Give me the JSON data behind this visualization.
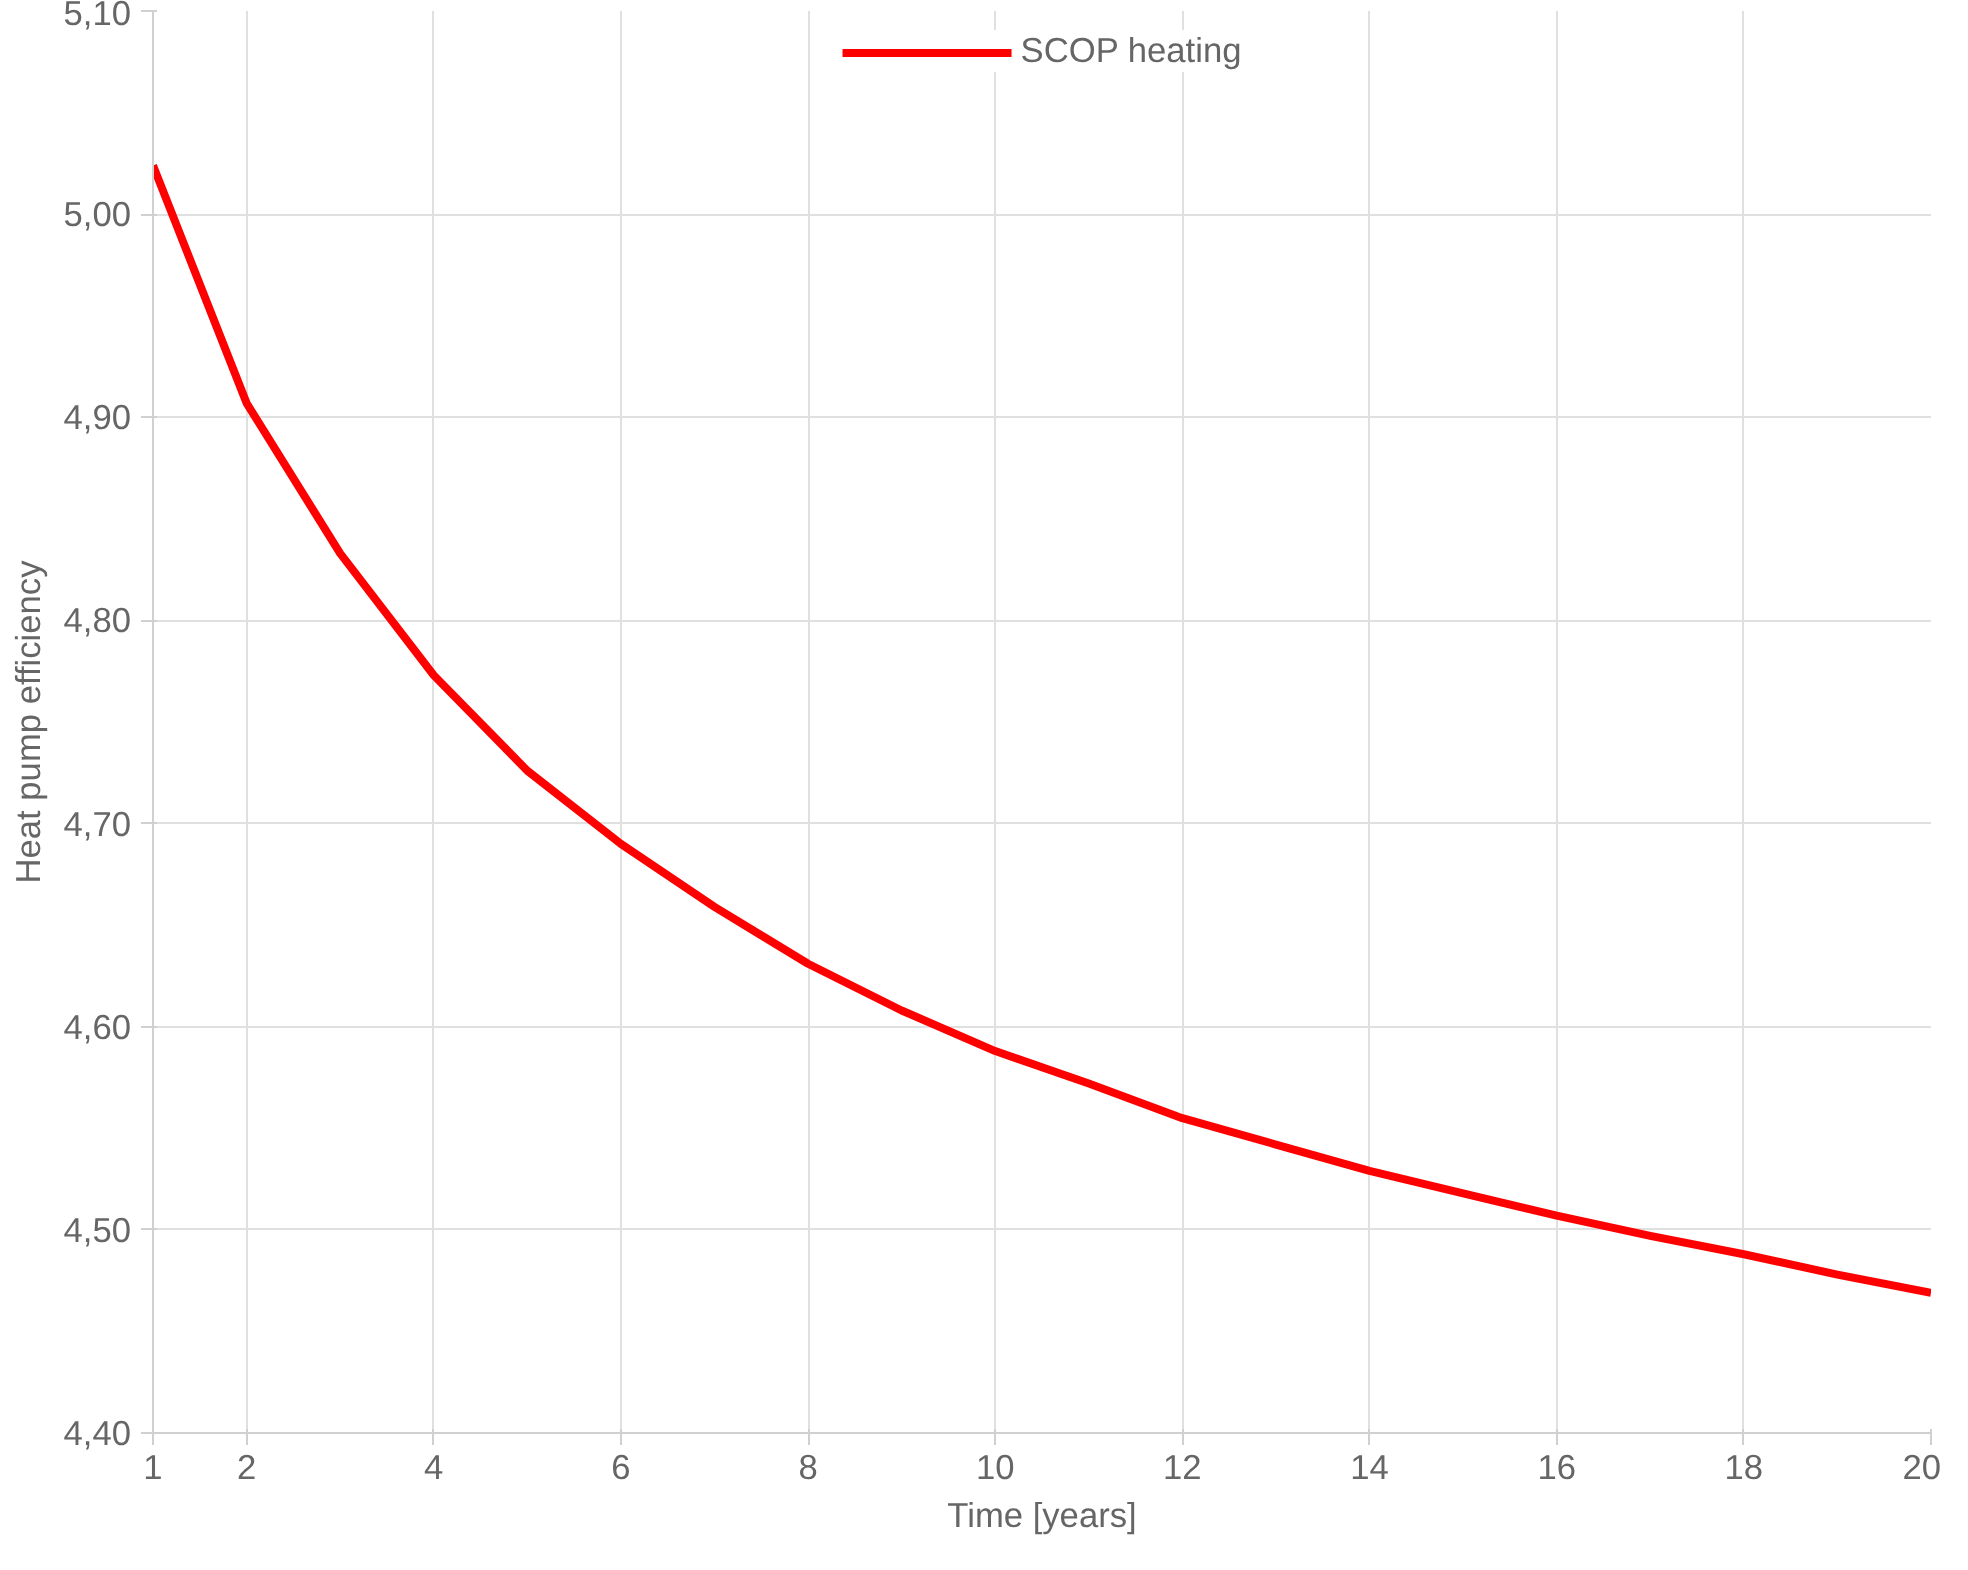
{
  "chart_data": {
    "type": "line",
    "xlabel": "Time [years]",
    "ylabel": "Heat pump efficiency",
    "x": [
      1,
      2,
      3,
      4,
      5,
      6,
      7,
      8,
      9,
      10,
      11,
      12,
      13,
      14,
      15,
      16,
      17,
      18,
      19,
      20
    ],
    "series": [
      {
        "name": "SCOP heating",
        "color": "#ff0000",
        "values": [
          5.024,
          4.907,
          4.833,
          4.773,
          4.726,
          4.69,
          4.659,
          4.631,
          4.608,
          4.588,
          4.572,
          4.555,
          4.542,
          4.529,
          4.518,
          4.507,
          4.497,
          4.488,
          4.478,
          4.469
        ]
      }
    ],
    "xlim": [
      1,
      20
    ],
    "xticks": [
      1,
      2,
      4,
      6,
      8,
      10,
      12,
      14,
      16,
      18,
      20
    ],
    "ylim": [
      4.4,
      5.1
    ],
    "yticks": [
      {
        "value": 4.4,
        "label": "4,40"
      },
      {
        "value": 4.5,
        "label": "4,50"
      },
      {
        "value": 4.6,
        "label": "4,60"
      },
      {
        "value": 4.7,
        "label": "4,70"
      },
      {
        "value": 4.8,
        "label": "4,80"
      },
      {
        "value": 4.9,
        "label": "4,90"
      },
      {
        "value": 5.0,
        "label": "5,00"
      },
      {
        "value": 5.1,
        "label": "5,10"
      }
    ],
    "grid": true,
    "legend": "top",
    "marker": "none",
    "line_style": "solid"
  }
}
